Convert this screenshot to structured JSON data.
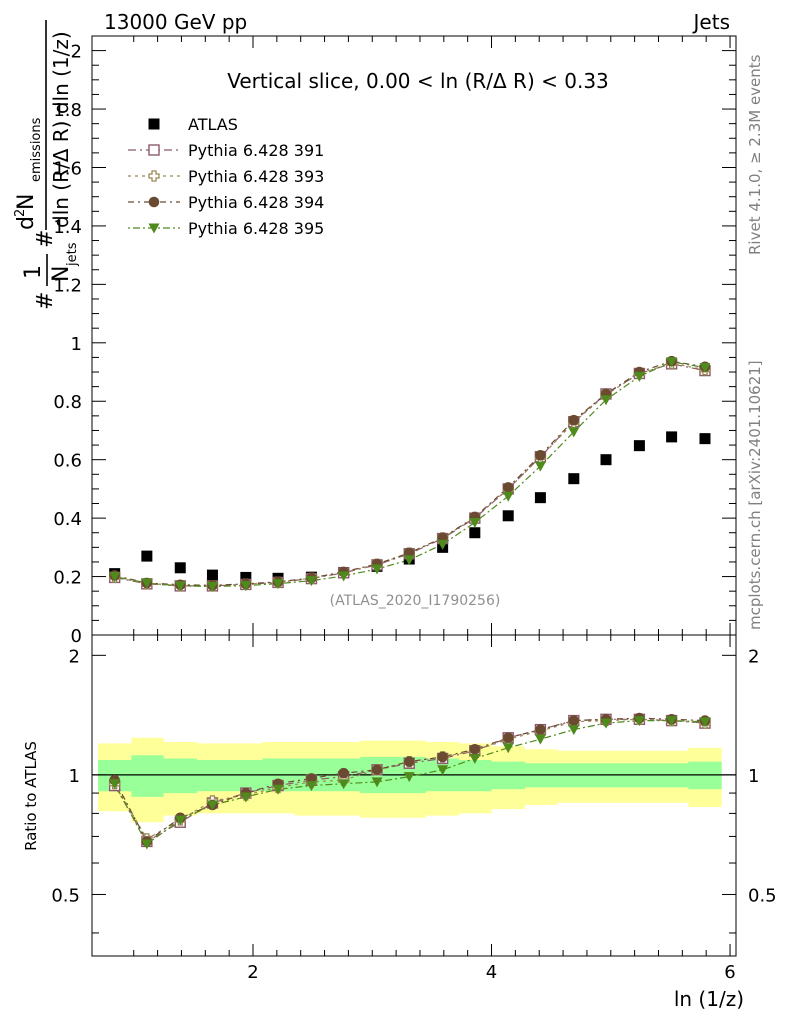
{
  "header": {
    "left": "13000 GeV pp",
    "right": "Jets"
  },
  "side": {
    "rivet": "Rivet 4.1.0, ≥ 2.3M events",
    "mcplots": "mcplots.cern.ch [arXiv:2401.10621]"
  },
  "watermark": "(ATLAS_2020_I1790256)",
  "ratio_ylabel": "Ratio to ATLAS",
  "ylabel": {
    "pre": "#",
    "frac1_num": "1",
    "frac1_den": "N",
    "frac1_den_sub": "jets",
    "mid": "#",
    "frac2_num": "d",
    "frac2_num_sup": "2",
    "frac2_num_rest": " N",
    "frac2_num_sub": "emissions",
    "frac2_den": "dln (R/Δ R) dln (1/z)"
  },
  "colors": {
    "atlas": "#000000",
    "p391": "#8b5a6b",
    "p393": "#9a8a55",
    "p394": "#6b4a32",
    "p395": "#4f8a1c",
    "band_outer": "#ffff99",
    "band_inner": "#99ff99"
  },
  "chart_data": [
    {
      "type": "scatter",
      "title": "Vertical slice, 0.00 < ln (R/Δ R) < 0.33",
      "xlabel": "ln (1/z)",
      "xlim": [
        0.65,
        6.05
      ],
      "ylim": [
        0,
        2.05
      ],
      "xticks": [
        2,
        4,
        6
      ],
      "yticks": [
        0,
        0.2,
        0.4,
        0.6,
        0.8,
        1,
        1.2,
        1.4,
        1.6,
        1.8,
        2
      ],
      "ytick_labels": [
        "0",
        "0.2",
        "0.4",
        "0.6",
        "0.8",
        "1",
        "1.2",
        "1.4",
        "1.6",
        "1.8",
        "2"
      ],
      "x": [
        0.84,
        1.11,
        1.39,
        1.66,
        1.94,
        2.21,
        2.49,
        2.76,
        3.04,
        3.31,
        3.59,
        3.86,
        4.14,
        4.41,
        4.69,
        4.96,
        5.24,
        5.51,
        5.79
      ],
      "series": [
        {
          "name": "ATLAS",
          "marker": "square-filled",
          "color_key": "atlas",
          "values": [
            0.21,
            0.27,
            0.23,
            0.205,
            0.197,
            0.194,
            0.198,
            0.214,
            0.235,
            0.26,
            0.3,
            0.35,
            0.408,
            0.47,
            0.535,
            0.6,
            0.648,
            0.678,
            0.672
          ]
        },
        {
          "name": "Pythia 6.428 391",
          "marker": "square-open",
          "color_key": "p391",
          "values": [
            0.197,
            0.175,
            0.168,
            0.168,
            0.173,
            0.18,
            0.193,
            0.213,
            0.24,
            0.278,
            0.33,
            0.4,
            0.5,
            0.61,
            0.73,
            0.825,
            0.895,
            0.928,
            0.905
          ]
        },
        {
          "name": "Pythia 6.428 393",
          "marker": "cross-open",
          "color_key": "p393",
          "values": [
            0.198,
            0.176,
            0.169,
            0.168,
            0.174,
            0.181,
            0.194,
            0.214,
            0.242,
            0.28,
            0.332,
            0.402,
            0.5,
            0.608,
            0.728,
            0.822,
            0.895,
            0.93,
            0.908
          ]
        },
        {
          "name": "Pythia 6.428 394",
          "marker": "circle-filled",
          "color_key": "p394",
          "values": [
            0.204,
            0.178,
            0.172,
            0.17,
            0.175,
            0.182,
            0.195,
            0.216,
            0.243,
            0.281,
            0.333,
            0.404,
            0.505,
            0.615,
            0.735,
            0.825,
            0.9,
            0.937,
            0.918
          ]
        },
        {
          "name": "Pythia 6.428 395",
          "marker": "triangle-down-filled",
          "color_key": "p395",
          "values": [
            0.2,
            0.178,
            0.168,
            0.166,
            0.169,
            0.176,
            0.186,
            0.202,
            0.226,
            0.257,
            0.31,
            0.385,
            0.475,
            0.578,
            0.695,
            0.805,
            0.885,
            0.935,
            0.915
          ]
        }
      ]
    },
    {
      "type": "scatter",
      "title": "Ratio to ATLAS",
      "xlabel": "ln (1/z)",
      "ylabel": "Ratio to ATLAS",
      "xlim": [
        0.65,
        6.05
      ],
      "ylim": [
        0.35,
        2.25
      ],
      "xticks": [
        2,
        4,
        6
      ],
      "yticks": [
        0.5,
        1,
        2
      ],
      "ytick_labels": [
        "0.5",
        "1",
        "2"
      ],
      "x": [
        0.84,
        1.11,
        1.39,
        1.66,
        1.94,
        2.21,
        2.49,
        2.76,
        3.04,
        3.31,
        3.59,
        3.86,
        4.14,
        4.41,
        4.69,
        4.96,
        5.24,
        5.51,
        5.79
      ],
      "band_edges": [
        0.7,
        0.98,
        1.25,
        1.53,
        1.8,
        2.08,
        2.35,
        2.63,
        2.9,
        3.18,
        3.45,
        3.73,
        4.0,
        4.28,
        4.55,
        4.83,
        5.1,
        5.38,
        5.65,
        5.93
      ],
      "band_outer": {
        "low": [
          0.81,
          0.76,
          0.79,
          0.8,
          0.8,
          0.8,
          0.79,
          0.79,
          0.78,
          0.78,
          0.79,
          0.8,
          0.82,
          0.84,
          0.85,
          0.85,
          0.85,
          0.85,
          0.83
        ],
        "high": [
          1.2,
          1.24,
          1.21,
          1.2,
          1.2,
          1.21,
          1.21,
          1.21,
          1.22,
          1.22,
          1.21,
          1.2,
          1.18,
          1.16,
          1.15,
          1.15,
          1.15,
          1.15,
          1.17
        ]
      },
      "band_inner": {
        "low": [
          0.91,
          0.88,
          0.9,
          0.91,
          0.91,
          0.91,
          0.91,
          0.91,
          0.9,
          0.9,
          0.91,
          0.91,
          0.92,
          0.93,
          0.93,
          0.93,
          0.93,
          0.93,
          0.92
        ],
        "high": [
          1.09,
          1.12,
          1.1,
          1.09,
          1.09,
          1.1,
          1.1,
          1.1,
          1.11,
          1.11,
          1.1,
          1.09,
          1.08,
          1.07,
          1.07,
          1.07,
          1.07,
          1.07,
          1.08
        ]
      },
      "series": [
        {
          "name": "Pythia 6.428 391",
          "marker": "square-open",
          "color_key": "p391",
          "values": [
            0.94,
            0.68,
            0.76,
            0.85,
            0.9,
            0.94,
            0.97,
            0.99,
            1.03,
            1.07,
            1.1,
            1.15,
            1.24,
            1.3,
            1.37,
            1.38,
            1.38,
            1.37,
            1.35
          ]
        },
        {
          "name": "Pythia 6.428 393",
          "marker": "cross-open",
          "color_key": "p393",
          "values": [
            0.95,
            0.69,
            0.77,
            0.86,
            0.89,
            0.93,
            0.96,
            0.97,
            1.03,
            1.08,
            1.11,
            1.15,
            1.23,
            1.29,
            1.36,
            1.37,
            1.38,
            1.37,
            1.35
          ]
        },
        {
          "name": "Pythia 6.428 394",
          "marker": "circle-filled",
          "color_key": "p394",
          "values": [
            0.97,
            0.68,
            0.78,
            0.84,
            0.9,
            0.95,
            0.98,
            1.01,
            1.03,
            1.08,
            1.11,
            1.16,
            1.24,
            1.3,
            1.37,
            1.38,
            1.39,
            1.38,
            1.37
          ]
        },
        {
          "name": "Pythia 6.428 395",
          "marker": "triangle-down-filled",
          "color_key": "p395",
          "values": [
            0.95,
            0.67,
            0.77,
            0.84,
            0.88,
            0.92,
            0.94,
            0.95,
            0.96,
            0.99,
            1.03,
            1.1,
            1.17,
            1.23,
            1.3,
            1.35,
            1.37,
            1.37,
            1.36
          ]
        }
      ]
    }
  ]
}
